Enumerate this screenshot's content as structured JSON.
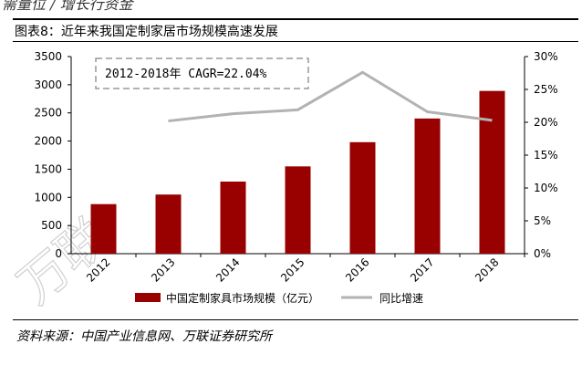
{
  "header": {
    "top_fragment": "需量位  /  增长行资金",
    "figure_title": "图表8：近年来我国定制家居市场规模高速发展"
  },
  "watermark": "万联",
  "annotation": "2012-2018年 CAGR=22.04%",
  "source": "资料来源：中国产业信息网、万联证券研究所",
  "chart_data": {
    "type": "bar",
    "categories": [
      "2012",
      "2013",
      "2014",
      "2015",
      "2016",
      "2017",
      "2018"
    ],
    "series": [
      {
        "name": "中国定制家具市场规模（亿元）",
        "type": "bar",
        "axis": "left",
        "values": [
          880,
          1050,
          1280,
          1550,
          1980,
          2400,
          2890
        ],
        "color": "#990000"
      },
      {
        "name": "同比增速",
        "type": "line",
        "axis": "right",
        "values": [
          null,
          20.2,
          21.3,
          21.9,
          27.6,
          21.6,
          20.3
        ],
        "color": "#b2b2b2"
      }
    ],
    "y_left": {
      "min": 0,
      "max": 3500,
      "ticks": [
        "0",
        "500",
        "1000",
        "1500",
        "2000",
        "2500",
        "3000",
        "3500"
      ]
    },
    "y_right": {
      "min": 0,
      "max": 30,
      "ticks": [
        "0%",
        "5%",
        "10%",
        "15%",
        "20%",
        "25%",
        "30%"
      ]
    },
    "legend_position": "bottom",
    "grid": false
  }
}
